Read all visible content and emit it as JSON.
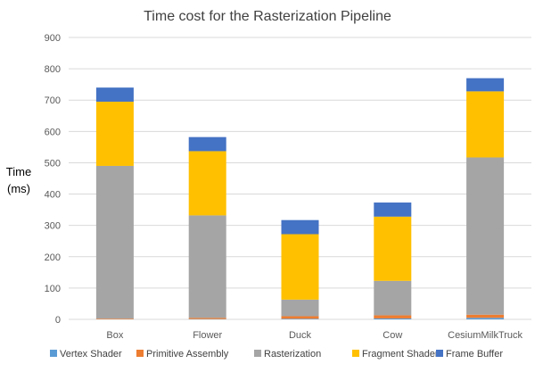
{
  "chart_data": {
    "type": "bar",
    "stacked": true,
    "title": "Time cost for the Rasterization Pipeline",
    "xlabel": "",
    "ylabel_line1": "Time",
    "ylabel_line2": "(ms)",
    "ylim": [
      0,
      900
    ],
    "yticks": [
      "0",
      "100",
      "200",
      "300",
      "400",
      "500",
      "600",
      "700",
      "800",
      "900"
    ],
    "grid": true,
    "legend_position": "bottom",
    "categories": [
      "Box",
      "Flower",
      "Duck",
      "Cow",
      "CesiumMilkTruck"
    ],
    "series": [
      {
        "name": "Vertex Shader",
        "color": "#5b9bd5",
        "values": [
          0,
          1,
          2,
          3,
          5
        ]
      },
      {
        "name": "Primitive Assembly",
        "color": "#ed7d31",
        "values": [
          2,
          4,
          8,
          10,
          10
        ]
      },
      {
        "name": "Rasterization",
        "color": "#a5a5a5",
        "values": [
          488,
          327,
          53,
          110,
          502
        ]
      },
      {
        "name": "Fragment Shader",
        "color": "#ffc000",
        "values": [
          205,
          205,
          209,
          205,
          211
        ]
      },
      {
        "name": "Frame Buffer",
        "color": "#4472c4",
        "values": [
          45,
          45,
          45,
          45,
          42
        ]
      }
    ]
  }
}
